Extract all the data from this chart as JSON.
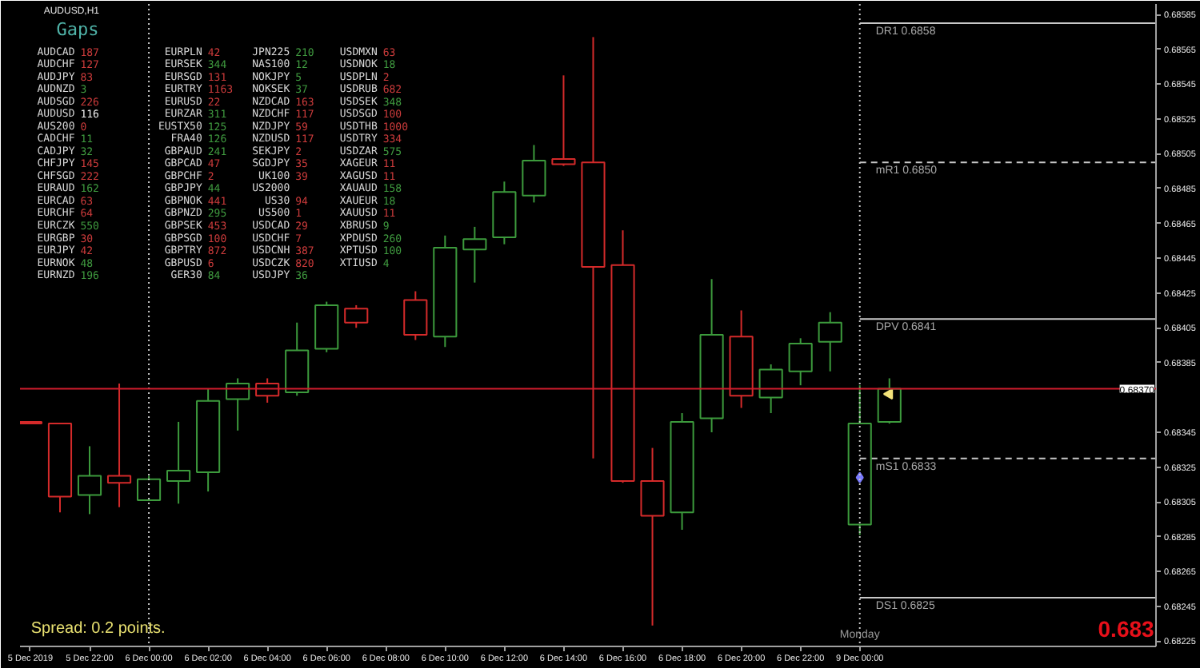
{
  "chart_data": [
    {
      "type": "candlestick",
      "title": "AUDUSD,H1",
      "categories": [
        "5 Dec 2019",
        null,
        "5 Dec 22:00",
        null,
        "6 Dec 00:00",
        null,
        "6 Dec 02:00",
        null,
        "6 Dec 04:00",
        null,
        "6 Dec 06:00",
        null,
        "6 Dec 08:00",
        null,
        "6 Dec 10:00",
        null,
        "6 Dec 12:00",
        null,
        "6 Dec 14:00",
        null,
        "6 Dec 16:00",
        null,
        "6 Dec 18:00",
        null,
        "6 Dec 20:00",
        null,
        "6 Dec 22:00",
        null,
        "9 Dec 00:00",
        null,
        null,
        null,
        null,
        null,
        null,
        null,
        null,
        null,
        null
      ],
      "ohlc": [
        [
          0.68351,
          0.68351,
          0.6835,
          0.6835
        ],
        [
          0.6835,
          0.6835,
          0.68299,
          0.68308
        ],
        [
          0.68309,
          0.68337,
          0.68298,
          0.6832
        ],
        [
          0.6832,
          0.68373,
          0.68302,
          0.68316
        ],
        [
          0.68306,
          0.6832,
          0.68306,
          0.68318
        ],
        [
          0.68317,
          0.68351,
          0.68304,
          0.68323
        ],
        [
          0.68322,
          0.6837,
          0.68311,
          0.68363
        ],
        [
          0.68364,
          0.68376,
          0.68346,
          0.68373
        ],
        [
          0.68373,
          0.68376,
          0.68362,
          0.68366
        ],
        [
          0.68368,
          0.68408,
          0.68366,
          0.68392
        ],
        [
          0.68393,
          0.6842,
          0.68391,
          0.68418
        ],
        [
          0.68416,
          0.68418,
          0.68405,
          0.68408
        ],
        null,
        [
          0.68421,
          0.68426,
          0.68398,
          0.68401
        ],
        [
          0.684,
          0.68458,
          0.68394,
          0.68451
        ],
        [
          0.6845,
          0.68463,
          0.68431,
          0.68456
        ],
        [
          0.68457,
          0.68489,
          0.68453,
          0.68483
        ],
        [
          0.68481,
          0.6851,
          0.68477,
          0.68501
        ],
        [
          0.68502,
          0.6855,
          0.68498,
          0.68499
        ],
        [
          0.685,
          0.68572,
          0.6833,
          0.6844
        ],
        [
          0.68441,
          0.68461,
          0.68316,
          0.68317
        ],
        [
          0.68317,
          0.68336,
          0.68234,
          0.68297
        ],
        [
          0.68299,
          0.68356,
          0.68289,
          0.68351
        ],
        [
          0.68353,
          0.68433,
          0.68345,
          0.68401
        ],
        [
          0.684,
          0.68415,
          0.68359,
          0.68366
        ],
        [
          0.68365,
          0.68384,
          0.68356,
          0.68381
        ],
        [
          0.6838,
          0.68399,
          0.68372,
          0.68396
        ],
        [
          0.68397,
          0.68414,
          0.6838,
          0.68408
        ],
        [
          0.68292,
          0.68372,
          0.68286,
          0.6835
        ],
        [
          0.68351,
          0.68376,
          0.6835,
          0.6837
        ],
        null,
        null,
        null,
        null,
        null,
        null,
        null,
        null,
        null
      ],
      "colors": [
        "#d42a2a",
        "#d42a2a",
        "#3c9a3c",
        "#d42a2a",
        "#3c9a3c",
        "#3c9a3c",
        "#3c9a3c",
        "#3c9a3c",
        "#d42a2a",
        "#3c9a3c",
        "#3c9a3c",
        "#d42a2a",
        null,
        "#d42a2a",
        "#3c9a3c",
        "#3c9a3c",
        "#3c9a3c",
        "#3c9a3c",
        "#d42a2a",
        "#d42a2a",
        "#d42a2a",
        "#d42a2a",
        "#3c9a3c",
        "#3c9a3c",
        "#d42a2a",
        "#3c9a3c",
        "#3c9a3c",
        "#3c9a3c",
        "#3c9a3c",
        "#3c9a3c",
        null,
        null,
        null,
        null,
        null,
        null,
        null,
        null,
        null
      ],
      "ylim": [
        0.68222,
        0.68591
      ],
      "yticks": [
        0.68225,
        0.68245,
        0.68265,
        0.68285,
        0.68305,
        0.68325,
        0.68345,
        0.68385,
        0.68405,
        0.68425,
        0.68445,
        0.68465,
        0.68485,
        0.68505,
        0.68525,
        0.68545,
        0.68565,
        0.68585
      ],
      "series": [
        {
          "name": "DR1 0.6858",
          "type": "line",
          "color": "#c8c8c8",
          "line_style": "solid",
          "values": [
            null,
            null,
            null,
            null,
            null,
            null,
            null,
            null,
            null,
            null,
            null,
            null,
            null,
            null,
            null,
            null,
            null,
            null,
            null,
            null,
            null,
            null,
            null,
            null,
            null,
            null,
            null,
            null,
            0.6858,
            0.6858,
            0.6858,
            0.6858,
            0.6858,
            0.6858,
            0.6858,
            0.6858,
            0.6858,
            0.6858,
            0.6858
          ]
        },
        {
          "name": "mR1 0.6850",
          "type": "line",
          "color": "#c8c8c8",
          "line_style": "dashed",
          "values": [
            null,
            null,
            null,
            null,
            null,
            null,
            null,
            null,
            null,
            null,
            null,
            null,
            null,
            null,
            null,
            null,
            null,
            null,
            null,
            null,
            null,
            null,
            null,
            null,
            null,
            null,
            null,
            null,
            0.685,
            0.685,
            0.685,
            0.685,
            0.685,
            0.685,
            0.685,
            0.685,
            0.685,
            0.685,
            0.685
          ]
        },
        {
          "name": "DPV 0.6841",
          "type": "line",
          "color": "#c8c8c8",
          "line_style": "solid",
          "values": [
            null,
            null,
            null,
            null,
            null,
            null,
            null,
            null,
            null,
            null,
            null,
            null,
            null,
            null,
            null,
            null,
            null,
            null,
            null,
            null,
            null,
            null,
            null,
            null,
            null,
            null,
            null,
            null,
            0.6841,
            0.6841,
            0.6841,
            0.6841,
            0.6841,
            0.6841,
            0.6841,
            0.6841,
            0.6841,
            0.6841,
            0.6841
          ]
        },
        {
          "name": "mS1 0.6833",
          "type": "line",
          "color": "#c8c8c8",
          "line_style": "dashed",
          "values": [
            null,
            null,
            null,
            null,
            null,
            null,
            null,
            null,
            null,
            null,
            null,
            null,
            null,
            null,
            null,
            null,
            null,
            null,
            null,
            null,
            null,
            null,
            null,
            null,
            null,
            null,
            null,
            null,
            0.6833,
            0.6833,
            0.6833,
            0.6833,
            0.6833,
            0.6833,
            0.6833,
            0.6833,
            0.6833,
            0.6833,
            0.6833
          ]
        },
        {
          "name": "DS1 0.6825",
          "type": "line",
          "color": "#c8c8c8",
          "line_style": "solid",
          "values": [
            null,
            null,
            null,
            null,
            null,
            null,
            null,
            null,
            null,
            null,
            null,
            null,
            null,
            null,
            null,
            null,
            null,
            null,
            null,
            null,
            null,
            null,
            null,
            null,
            null,
            null,
            null,
            null,
            0.6825,
            0.6825,
            0.6825,
            0.6825,
            0.6825,
            0.6825,
            0.6825,
            0.6825,
            0.6825,
            0.6825,
            0.6825
          ]
        },
        {
          "type": "scatter",
          "color": "#7b7bff",
          "marker": "diamond",
          "values": [
            null,
            null,
            null,
            null,
            null,
            null,
            null,
            null,
            null,
            null,
            null,
            null,
            null,
            null,
            null,
            null,
            null,
            null,
            null,
            null,
            null,
            null,
            null,
            null,
            null,
            null,
            null,
            null,
            0.68319,
            null,
            null,
            null,
            null,
            null,
            null,
            null,
            null,
            null,
            null
          ]
        },
        {
          "type": "scatter",
          "color": "#f2e27a",
          "marker": "triangle",
          "values": [
            null,
            null,
            null,
            null,
            null,
            null,
            null,
            null,
            null,
            null,
            null,
            null,
            null,
            null,
            null,
            null,
            null,
            null,
            null,
            null,
            null,
            null,
            null,
            null,
            null,
            null,
            null,
            null,
            null,
            0.68367,
            null,
            null,
            null,
            null,
            null,
            null,
            null,
            null,
            null
          ]
        }
      ],
      "ref_lines": [
        {
          "axis": "x",
          "value": "6 Dec 00:00",
          "color": "#c8c8c8",
          "line_style": "dotted"
        },
        {
          "axis": "x",
          "value": "9 Dec 00:00",
          "label": "Monday",
          "color": "#c8c8c8",
          "line_style": "dotted"
        },
        {
          "axis": "y",
          "value": 0.6837,
          "label": "0.68370",
          "color": "#d01c2c",
          "line_style": "solid"
        }
      ],
      "annotations": [
        "Spread: 0.2 points.",
        "0.683"
      ]
    },
    {
      "type": "other",
      "title": "Gaps",
      "categories": [
        "AUDCAD",
        "AUDCHF",
        "AUDJPY",
        "AUDNZD",
        "AUDSGD",
        "AUDUSD",
        "AUS200",
        "CADCHF",
        "CADJPY",
        "CHFJPY",
        "CHFSGD",
        "EURAUD",
        "EURCAD",
        "EURCHF",
        "EURCZK",
        "EURGBP",
        "EURJPY",
        "EURNOK",
        "EURNZD",
        "EURPLN",
        "EURSEK",
        "EURSGD",
        "EURTRY",
        "EURUSD",
        "EURZAR",
        "EUSTX50",
        "FRA40",
        "GBPAUD",
        "GBPCAD",
        "GBPCHF",
        "GBPJPY",
        "GBPNOK",
        "GBPNZD",
        "GBPSEK",
        "GBPSGD",
        "GBPTRY",
        "GBPUSD",
        "GER30",
        "JPN225",
        "NAS100",
        "NOKJPY",
        "NOKSEK",
        "NZDCAD",
        "NZDCHF",
        "NZDJPY",
        "NZDUSD",
        "SEKJPY",
        "SGDJPY",
        "UK100",
        "US2000",
        "US30",
        "US500",
        "USDCAD",
        "USDCHF",
        "USDCNH",
        "USDCZK",
        "USDJPY",
        "USDMXN",
        "USDNOK",
        "USDPLN",
        "USDRUB",
        "USDSEK",
        "USDSGD",
        "USDTHB",
        "USDTRY",
        "USDZAR",
        "XAGEUR",
        "XAGUSD",
        "XAUAUD",
        "XAUEUR",
        "XAUUSD",
        "XBRUSD",
        "XPDUSD",
        "XPTUSD",
        "XTIUSD"
      ],
      "values": [
        187,
        127,
        83,
        3,
        226,
        116,
        0,
        11,
        32,
        145,
        222,
        162,
        63,
        64,
        550,
        30,
        42,
        48,
        196,
        42,
        344,
        131,
        1163,
        22,
        311,
        125,
        126,
        241,
        47,
        2,
        44,
        441,
        295,
        453,
        100,
        872,
        6,
        84,
        210,
        12,
        5,
        37,
        163,
        117,
        59,
        117,
        2,
        35,
        39,
        null,
        94,
        1,
        29,
        7,
        387,
        820,
        36,
        63,
        18,
        2,
        682,
        348,
        100,
        1000,
        334,
        575,
        11,
        11,
        158,
        18,
        11,
        9,
        260,
        100,
        4
      ],
      "colors": [
        "#cc3b3b",
        "#cc3b3b",
        "#cc3b3b",
        "#3f9a3f",
        "#cc3b3b",
        "#f0f0f0",
        "#cc3b3b",
        "#3f9a3f",
        "#3f9a3f",
        "#cc3b3b",
        "#cc3b3b",
        "#3f9a3f",
        "#cc3b3b",
        "#cc3b3b",
        "#3f9a3f",
        "#cc3b3b",
        "#cc3b3b",
        "#3f9a3f",
        "#3f9a3f",
        "#cc3b3b",
        "#3f9a3f",
        "#cc3b3b",
        "#cc3b3b",
        "#cc3b3b",
        "#3f9a3f",
        "#3f9a3f",
        "#3f9a3f",
        "#3f9a3f",
        "#cc3b3b",
        "#cc3b3b",
        "#3f9a3f",
        "#cc3b3b",
        "#3f9a3f",
        "#cc3b3b",
        "#cc3b3b",
        "#cc3b3b",
        "#cc3b3b",
        "#3f9a3f",
        "#3f9a3f",
        "#3f9a3f",
        "#3f9a3f",
        "#3f9a3f",
        "#cc3b3b",
        "#cc3b3b",
        "#cc3b3b",
        "#cc3b3b",
        "#cc3b3b",
        "#cc3b3b",
        "#cc3b3b",
        null,
        "#cc3b3b",
        "#cc3b3b",
        "#cc3b3b",
        "#cc3b3b",
        "#cc3b3b",
        "#cc3b3b",
        "#3f9a3f",
        "#cc3b3b",
        "#3f9a3f",
        "#cc3b3b",
        "#cc3b3b",
        "#3f9a3f",
        "#cc3b3b",
        "#cc3b3b",
        "#cc3b3b",
        "#3f9a3f",
        "#cc3b3b",
        "#cc3b3b",
        "#3f9a3f",
        "#3f9a3f",
        "#cc3b3b",
        "#3f9a3f",
        "#3f9a3f",
        "#3f9a3f",
        "#3f9a3f"
      ],
      "data_labels": true
    }
  ]
}
